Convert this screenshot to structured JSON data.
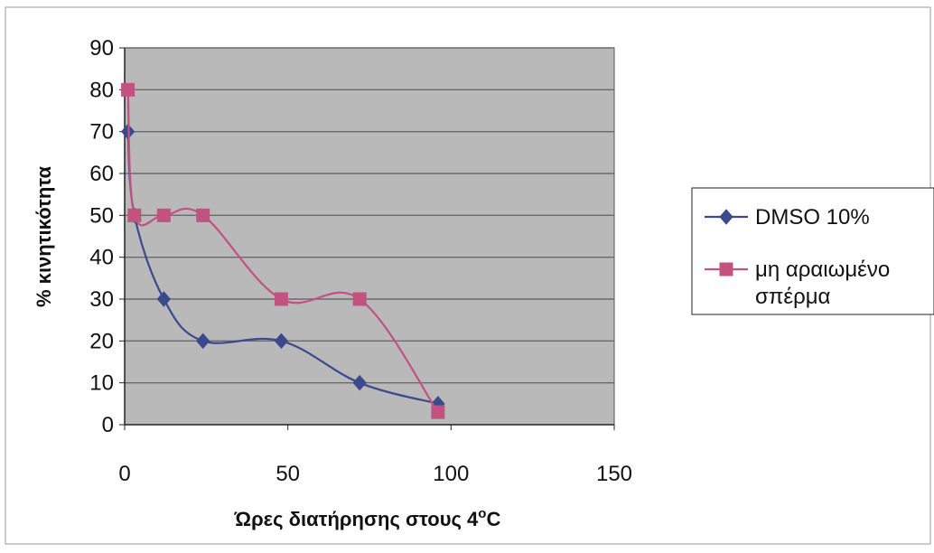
{
  "colors": {
    "plot_background": "#b9b9b9",
    "gridline": "#6a6a6a",
    "series_1": "#3b4a8c",
    "series_2": "#c2527f"
  },
  "chart_data": {
    "type": "line",
    "title": "",
    "xlabel": "Ώρες διατήρησης στους 4",
    "xlabel_superscript": "o",
    "xlabel_suffix": "C",
    "ylabel": "% κινητικότητα",
    "xlim": [
      0,
      150
    ],
    "ylim": [
      0,
      90
    ],
    "x_ticks": [
      "0",
      "50",
      "100",
      "150"
    ],
    "y_ticks": [
      "0",
      "10",
      "20",
      "30",
      "40",
      "50",
      "60",
      "70",
      "80",
      "90"
    ],
    "grid": "horizontal",
    "legend_position": "right",
    "smooth": true,
    "series": [
      {
        "name": "DMSO 10%",
        "marker": "diamond",
        "color": "#3b4a8c",
        "points": [
          [
            1,
            70
          ],
          [
            3,
            50
          ],
          [
            12,
            30
          ],
          [
            24,
            20
          ],
          [
            48,
            20
          ],
          [
            72,
            10
          ],
          [
            96,
            5
          ]
        ]
      },
      {
        "name": "μη αραιωμένο σπέρμα",
        "legend_lines": [
          "μη αραιωμένο",
          "σπέρμα"
        ],
        "marker": "square",
        "color": "#c2527f",
        "points": [
          [
            1,
            80
          ],
          [
            3,
            50
          ],
          [
            12,
            50
          ],
          [
            24,
            50
          ],
          [
            48,
            30
          ],
          [
            72,
            30
          ],
          [
            96,
            3
          ]
        ]
      }
    ]
  }
}
